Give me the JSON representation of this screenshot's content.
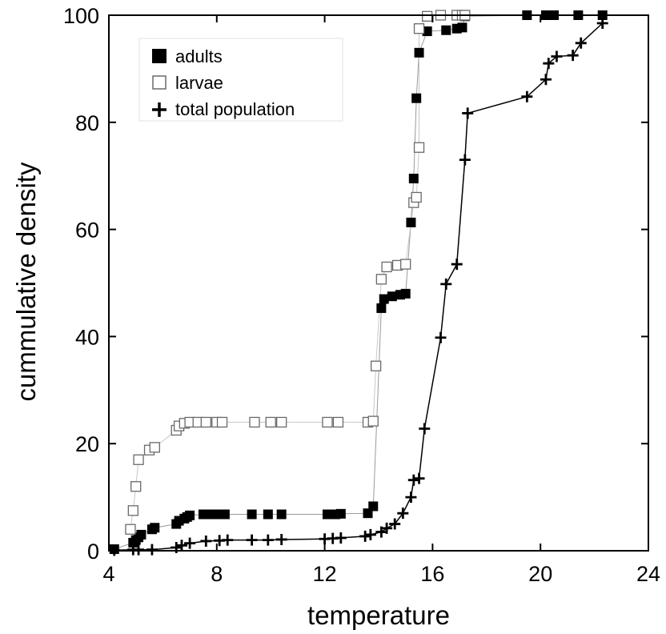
{
  "chart_data": {
    "type": "line",
    "xlabel": "temperature",
    "ylabel": "cummulative density",
    "xlim": [
      4,
      24
    ],
    "ylim": [
      0,
      100
    ],
    "xticks": [
      4,
      8,
      12,
      16,
      20,
      24
    ],
    "yticks": [
      0,
      20,
      40,
      60,
      80,
      100
    ],
    "grid": false,
    "legend_position": "top-left",
    "series": [
      {
        "name": "adults",
        "marker": "filled-square",
        "color": "#000000",
        "line_color": "#9a9a9a",
        "points": [
          [
            4.2,
            0.3
          ],
          [
            4.9,
            1.5
          ],
          [
            5.0,
            2.0
          ],
          [
            5.1,
            2.5
          ],
          [
            5.2,
            3.0
          ],
          [
            5.6,
            4.0
          ],
          [
            5.7,
            4.3
          ],
          [
            6.5,
            5.0
          ],
          [
            6.6,
            5.6
          ],
          [
            6.8,
            6.0
          ],
          [
            6.9,
            6.3
          ],
          [
            7.0,
            6.6
          ],
          [
            7.5,
            6.8
          ],
          [
            7.8,
            6.8
          ],
          [
            8.0,
            6.8
          ],
          [
            8.3,
            6.8
          ],
          [
            9.3,
            6.8
          ],
          [
            9.9,
            6.8
          ],
          [
            10.4,
            6.8
          ],
          [
            12.1,
            6.8
          ],
          [
            12.4,
            6.8
          ],
          [
            12.6,
            6.9
          ],
          [
            13.6,
            7.0
          ],
          [
            13.8,
            8.3
          ],
          [
            14.1,
            45.3
          ],
          [
            14.2,
            47.0
          ],
          [
            14.5,
            47.5
          ],
          [
            14.8,
            47.8
          ],
          [
            15.0,
            48.0
          ],
          [
            15.2,
            61.3
          ],
          [
            15.3,
            69.5
          ],
          [
            15.4,
            84.5
          ],
          [
            15.5,
            93.0
          ],
          [
            15.8,
            97.0
          ],
          [
            16.5,
            97.2
          ],
          [
            16.9,
            97.5
          ],
          [
            17.1,
            97.7
          ],
          [
            17.2,
            99.8
          ],
          [
            19.5,
            100
          ],
          [
            20.2,
            100
          ],
          [
            20.5,
            100
          ],
          [
            21.4,
            100
          ],
          [
            22.3,
            100
          ]
        ]
      },
      {
        "name": "larvae",
        "marker": "open-square",
        "color": "#6a6a6a",
        "line_color": "#c8c8c8",
        "points": [
          [
            4.8,
            4.0
          ],
          [
            4.9,
            7.5
          ],
          [
            5.0,
            12.0
          ],
          [
            5.1,
            17.0
          ],
          [
            5.5,
            18.8
          ],
          [
            5.7,
            19.3
          ],
          [
            6.5,
            22.5
          ],
          [
            6.6,
            23.3
          ],
          [
            6.8,
            23.8
          ],
          [
            7.0,
            24.0
          ],
          [
            7.3,
            24.0
          ],
          [
            7.6,
            24.0
          ],
          [
            8.0,
            24.0
          ],
          [
            8.2,
            24.0
          ],
          [
            9.4,
            24.0
          ],
          [
            10.0,
            24.0
          ],
          [
            10.4,
            24.0
          ],
          [
            12.1,
            24.0
          ],
          [
            12.5,
            24.0
          ],
          [
            13.6,
            24.0
          ],
          [
            13.8,
            24.2
          ],
          [
            13.9,
            34.5
          ],
          [
            14.1,
            50.7
          ],
          [
            14.3,
            53.0
          ],
          [
            14.7,
            53.3
          ],
          [
            15.0,
            53.5
          ],
          [
            15.3,
            65.0
          ],
          [
            15.4,
            66.0
          ],
          [
            15.5,
            75.3
          ],
          [
            15.5,
            97.5
          ],
          [
            15.8,
            99.8
          ],
          [
            16.3,
            100
          ],
          [
            16.9,
            100
          ],
          [
            17.1,
            100
          ],
          [
            17.2,
            100
          ]
        ]
      },
      {
        "name": "total population",
        "marker": "plus",
        "color": "#000000",
        "line_color": "#000000",
        "points": [
          [
            4.2,
            0.1
          ],
          [
            4.9,
            0.2
          ],
          [
            5.1,
            0.2
          ],
          [
            5.6,
            0.2
          ],
          [
            6.5,
            0.6
          ],
          [
            6.7,
            1.0
          ],
          [
            7.0,
            1.4
          ],
          [
            7.6,
            1.8
          ],
          [
            8.1,
            1.9
          ],
          [
            8.4,
            2.0
          ],
          [
            9.3,
            2.0
          ],
          [
            9.9,
            2.0
          ],
          [
            10.4,
            2.1
          ],
          [
            12.0,
            2.2
          ],
          [
            12.3,
            2.3
          ],
          [
            12.6,
            2.4
          ],
          [
            13.5,
            2.7
          ],
          [
            13.7,
            3.0
          ],
          [
            14.1,
            3.5
          ],
          [
            14.3,
            4.2
          ],
          [
            14.6,
            5.0
          ],
          [
            14.9,
            7.0
          ],
          [
            15.2,
            10.0
          ],
          [
            15.3,
            13.2
          ],
          [
            15.5,
            13.5
          ],
          [
            15.7,
            22.8
          ],
          [
            16.3,
            39.8
          ],
          [
            16.5,
            49.8
          ],
          [
            16.9,
            53.5
          ],
          [
            17.2,
            73.0
          ],
          [
            17.3,
            81.7
          ],
          [
            19.5,
            84.8
          ],
          [
            20.2,
            88.0
          ],
          [
            20.3,
            91.0
          ],
          [
            20.6,
            92.3
          ],
          [
            21.2,
            92.5
          ],
          [
            21.5,
            94.8
          ],
          [
            22.3,
            98.5
          ]
        ]
      }
    ]
  }
}
